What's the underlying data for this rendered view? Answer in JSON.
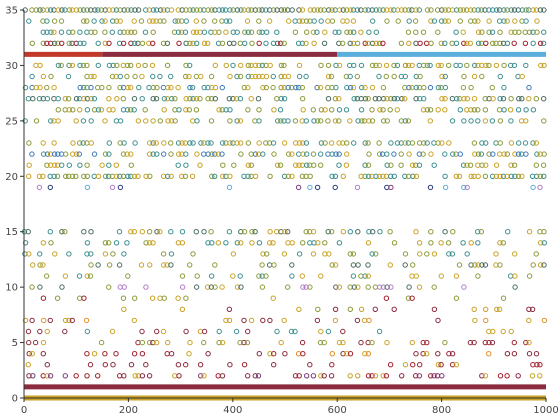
{
  "chart_data": {
    "type": "scatter",
    "title": "",
    "xlabel": "",
    "ylabel": "",
    "xlim": [
      0,
      1000
    ],
    "ylim": [
      0,
      35
    ],
    "x_ticks": [
      0,
      200,
      400,
      600,
      800,
      1000
    ],
    "y_ticks": [
      0,
      5,
      10,
      15,
      20,
      25,
      30,
      35
    ],
    "x_tick_labels": [
      "0",
      "200",
      "400",
      "600",
      "800",
      "1000"
    ],
    "y_tick_labels": [
      "0",
      "5",
      "10",
      "15",
      "20",
      "25",
      "30",
      "35"
    ],
    "grid": false,
    "marker": "hollow-circle",
    "palette": {
      "gold": "#c9a227",
      "olive": "#8c9a3a",
      "teal": "#3f8f8f",
      "darkslate": "#4a6b5c",
      "crimson": "#a02030",
      "maroon": "#8b2b3f",
      "purple": "#7a3c7a",
      "violet": "#b07ac8",
      "blue": "#3a78b8",
      "skyblue": "#5aaedc",
      "orange": "#e0902a",
      "navy": "#2a3a7a",
      "red": "#c0392b"
    },
    "bands": [
      {
        "y": 31,
        "x": [
          0,
          150
        ],
        "color": "#c0392b"
      },
      {
        "y": 31,
        "x": [
          150,
          600
        ],
        "color": "#8b2b3f"
      },
      {
        "y": 31,
        "x": [
          600,
          1000
        ],
        "color": "#5aaedc"
      },
      {
        "y": 1,
        "x": [
          0,
          1000
        ],
        "color": "#8b2b3f"
      },
      {
        "y": 0,
        "x": [
          0,
          1000
        ],
        "color": "#c9a227"
      }
    ],
    "rows": [
      {
        "y": 35,
        "density": 0.95,
        "colors": [
          "teal",
          "darkslate",
          "olive",
          "gold"
        ]
      },
      {
        "y": 34,
        "density": 0.55,
        "colors": [
          "teal",
          "olive",
          "gold"
        ]
      },
      {
        "y": 33,
        "density": 0.5,
        "colors": [
          "teal",
          "olive",
          "gold"
        ]
      },
      {
        "y": 32,
        "density": 0.6,
        "colors": [
          "teal",
          "darkslate",
          "olive",
          "gold",
          "crimson"
        ]
      },
      {
        "y": 30,
        "density": 0.45,
        "colors": [
          "teal",
          "olive",
          "gold"
        ]
      },
      {
        "y": 29,
        "density": 0.4,
        "colors": [
          "teal",
          "olive",
          "gold"
        ]
      },
      {
        "y": 28,
        "density": 0.5,
        "colors": [
          "blue",
          "teal",
          "olive",
          "gold"
        ]
      },
      {
        "y": 27,
        "density": 0.55,
        "colors": [
          "teal",
          "olive",
          "gold",
          "darkslate"
        ]
      },
      {
        "y": 26,
        "density": 0.45,
        "colors": [
          "teal",
          "olive",
          "gold"
        ]
      },
      {
        "y": 25,
        "density": 0.5,
        "colors": [
          "teal",
          "olive",
          "gold"
        ]
      },
      {
        "y": 23,
        "density": 0.45,
        "colors": [
          "teal",
          "olive",
          "gold"
        ]
      },
      {
        "y": 22,
        "density": 0.55,
        "colors": [
          "teal",
          "blue",
          "olive",
          "gold"
        ]
      },
      {
        "y": 21,
        "density": 0.35,
        "colors": [
          "teal",
          "olive",
          "gold"
        ]
      },
      {
        "y": 20,
        "density": 0.6,
        "colors": [
          "teal",
          "olive",
          "gold"
        ]
      },
      {
        "y": 19,
        "density": 0.12,
        "colors": [
          "violet",
          "navy",
          "skyblue",
          "purple"
        ]
      },
      {
        "y": 15,
        "density": 0.35,
        "colors": [
          "teal",
          "darkslate",
          "olive",
          "gold"
        ]
      },
      {
        "y": 14,
        "density": 0.3,
        "colors": [
          "teal",
          "olive",
          "gold"
        ]
      },
      {
        "y": 13,
        "density": 0.25,
        "colors": [
          "teal",
          "olive",
          "gold"
        ]
      },
      {
        "y": 12,
        "density": 0.25,
        "colors": [
          "darkslate",
          "olive",
          "gold"
        ]
      },
      {
        "y": 11,
        "density": 0.2,
        "colors": [
          "teal",
          "olive",
          "gold"
        ]
      },
      {
        "y": 10,
        "density": 0.2,
        "colors": [
          "violet",
          "darkslate",
          "olive",
          "gold"
        ]
      },
      {
        "y": 9,
        "density": 0.12,
        "colors": [
          "olive",
          "gold",
          "crimson"
        ]
      },
      {
        "y": 8,
        "density": 0.1,
        "colors": [
          "maroon",
          "olive",
          "gold"
        ]
      },
      {
        "y": 7,
        "density": 0.15,
        "colors": [
          "maroon",
          "orange",
          "gold"
        ]
      },
      {
        "y": 6,
        "density": 0.2,
        "colors": [
          "teal",
          "maroon",
          "gold"
        ]
      },
      {
        "y": 5,
        "density": 0.25,
        "colors": [
          "maroon",
          "crimson",
          "olive",
          "gold"
        ]
      },
      {
        "y": 4,
        "density": 0.2,
        "colors": [
          "maroon",
          "crimson",
          "gold",
          "orange"
        ]
      },
      {
        "y": 3,
        "density": 0.2,
        "colors": [
          "maroon",
          "crimson",
          "gold"
        ]
      },
      {
        "y": 2,
        "density": 0.35,
        "colors": [
          "maroon",
          "purple",
          "crimson",
          "gold"
        ]
      }
    ]
  }
}
